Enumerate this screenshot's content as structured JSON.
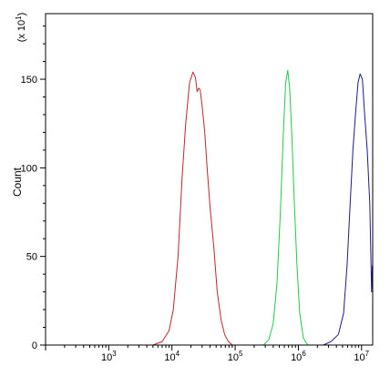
{
  "chart_data": {
    "type": "line",
    "title": "",
    "xlabel": "",
    "ylabel": "Count",
    "y_multiplier_label": "(x 10",
    "y_multiplier_exponent": "1",
    "y_multiplier_close": ")",
    "x_scale": "log",
    "xlim": [
      100,
      15000000
    ],
    "ylim": [
      0,
      187
    ],
    "x_tick_labels": [
      {
        "value": 1000,
        "base": "10",
        "exp": "3"
      },
      {
        "value": 10000,
        "base": "10",
        "exp": "4"
      },
      {
        "value": 100000,
        "base": "10",
        "exp": "5"
      },
      {
        "value": 1000000,
        "base": "10",
        "exp": "6"
      },
      {
        "value": 10000000,
        "base": "10",
        "exp": "7"
      }
    ],
    "y_ticks": [
      0,
      50,
      100,
      150
    ],
    "y_tick_labels": [
      "0",
      "50",
      "100",
      "150"
    ],
    "grid": false,
    "legend": "none",
    "series": [
      {
        "color": "#c0262d",
        "x": [
          5000,
          7000,
          9000,
          10500,
          12500,
          14500,
          16500,
          19000,
          21500,
          23500,
          25000,
          26500,
          28000,
          30000,
          33000,
          36000,
          40000,
          46000,
          52000,
          60000,
          68000,
          78000,
          90000
        ],
        "y": [
          0,
          2,
          8,
          20,
          50,
          95,
          125,
          148,
          154,
          151,
          143,
          145,
          144,
          135,
          120,
          100,
          78,
          55,
          30,
          14,
          6,
          2,
          0
        ]
      },
      {
        "color": "#22c84a",
        "x": [
          280000,
          340000,
          400000,
          460000,
          520000,
          580000,
          630000,
          680000,
          730000,
          790000,
          860000,
          950000,
          1050000,
          1200000,
          1400000
        ],
        "y": [
          0,
          3,
          12,
          35,
          75,
          120,
          148,
          155,
          145,
          118,
          82,
          45,
          18,
          4,
          0
        ]
      },
      {
        "color": "#1c1c8c",
        "x": [
          2500000,
          3300000,
          4300000,
          5200000,
          5900000,
          6600000,
          7300000,
          8000000,
          8800000,
          9500000,
          10300000,
          11200000,
          12300000,
          13500000,
          14400000,
          14800000
        ],
        "y": [
          0,
          2,
          6,
          18,
          45,
          80,
          110,
          130,
          148,
          153,
          150,
          130,
          110,
          80,
          30,
          45
        ]
      }
    ]
  }
}
